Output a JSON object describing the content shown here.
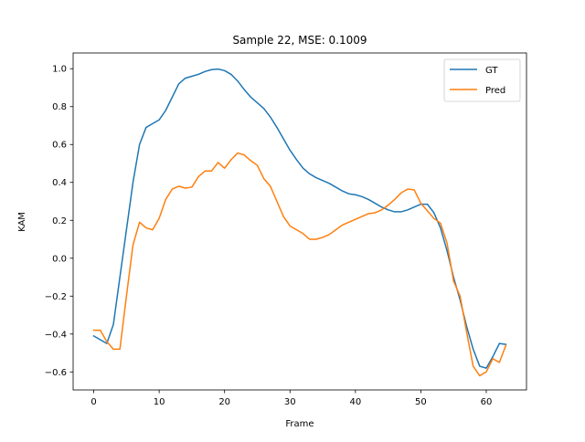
{
  "chart_data": {
    "type": "line",
    "title": "Sample 22, MSE: 0.1009",
    "xlabel": "Frame",
    "ylabel": "KAM",
    "xlim": [
      -3.15,
      66.15
    ],
    "ylim": [
      -0.695,
      1.083
    ],
    "xticks": [
      0,
      10,
      20,
      30,
      40,
      50,
      60
    ],
    "yticks": [
      -0.6,
      -0.4,
      -0.2,
      0.0,
      0.2,
      0.4,
      0.6,
      0.8,
      1.0
    ],
    "xtick_labels": [
      "0",
      "10",
      "20",
      "30",
      "40",
      "50",
      "60"
    ],
    "ytick_labels": [
      "−0.6",
      "−0.4",
      "−0.2",
      "0.0",
      "0.2",
      "0.4",
      "0.6",
      "0.8",
      "1.0"
    ],
    "grid": false,
    "legend_position": "top-right",
    "x": [
      0,
      1,
      2,
      3,
      4,
      5,
      6,
      7,
      8,
      9,
      10,
      11,
      12,
      13,
      14,
      15,
      16,
      17,
      18,
      19,
      20,
      21,
      22,
      23,
      24,
      25,
      26,
      27,
      28,
      29,
      30,
      31,
      32,
      33,
      34,
      35,
      36,
      37,
      38,
      39,
      40,
      41,
      42,
      43,
      44,
      45,
      46,
      47,
      48,
      49,
      50,
      51,
      52,
      53,
      54,
      55,
      56,
      57,
      58,
      59,
      60,
      61,
      62,
      63
    ],
    "series": [
      {
        "name": "GT",
        "color": "#1f77b4",
        "values": [
          -0.41,
          -0.43,
          -0.45,
          -0.35,
          -0.1,
          0.15,
          0.4,
          0.6,
          0.69,
          0.71,
          0.73,
          0.78,
          0.85,
          0.92,
          0.95,
          0.96,
          0.97,
          0.985,
          0.995,
          0.998,
          0.99,
          0.97,
          0.935,
          0.89,
          0.85,
          0.82,
          0.79,
          0.745,
          0.69,
          0.63,
          0.57,
          0.52,
          0.475,
          0.445,
          0.425,
          0.41,
          0.395,
          0.375,
          0.355,
          0.34,
          0.335,
          0.325,
          0.31,
          0.29,
          0.27,
          0.255,
          0.245,
          0.245,
          0.255,
          0.27,
          0.285,
          0.285,
          0.24,
          0.16,
          0.04,
          -0.1,
          -0.22,
          -0.36,
          -0.48,
          -0.57,
          -0.58,
          -0.52,
          -0.45,
          -0.455
        ]
      },
      {
        "name": "Pred",
        "color": "#ff7f0e",
        "values": [
          -0.38,
          -0.38,
          -0.44,
          -0.48,
          -0.48,
          -0.2,
          0.07,
          0.19,
          0.16,
          0.15,
          0.21,
          0.31,
          0.365,
          0.38,
          0.37,
          0.375,
          0.43,
          0.46,
          0.46,
          0.505,
          0.475,
          0.52,
          0.555,
          0.545,
          0.515,
          0.49,
          0.42,
          0.38,
          0.3,
          0.22,
          0.17,
          0.15,
          0.13,
          0.1,
          0.1,
          0.11,
          0.125,
          0.15,
          0.175,
          0.19,
          0.205,
          0.22,
          0.235,
          0.24,
          0.255,
          0.28,
          0.31,
          0.345,
          0.365,
          0.36,
          0.29,
          0.25,
          0.21,
          0.185,
          0.08,
          -0.12,
          -0.2,
          -0.39,
          -0.57,
          -0.62,
          -0.6,
          -0.53,
          -0.55,
          -0.46
        ]
      }
    ]
  }
}
